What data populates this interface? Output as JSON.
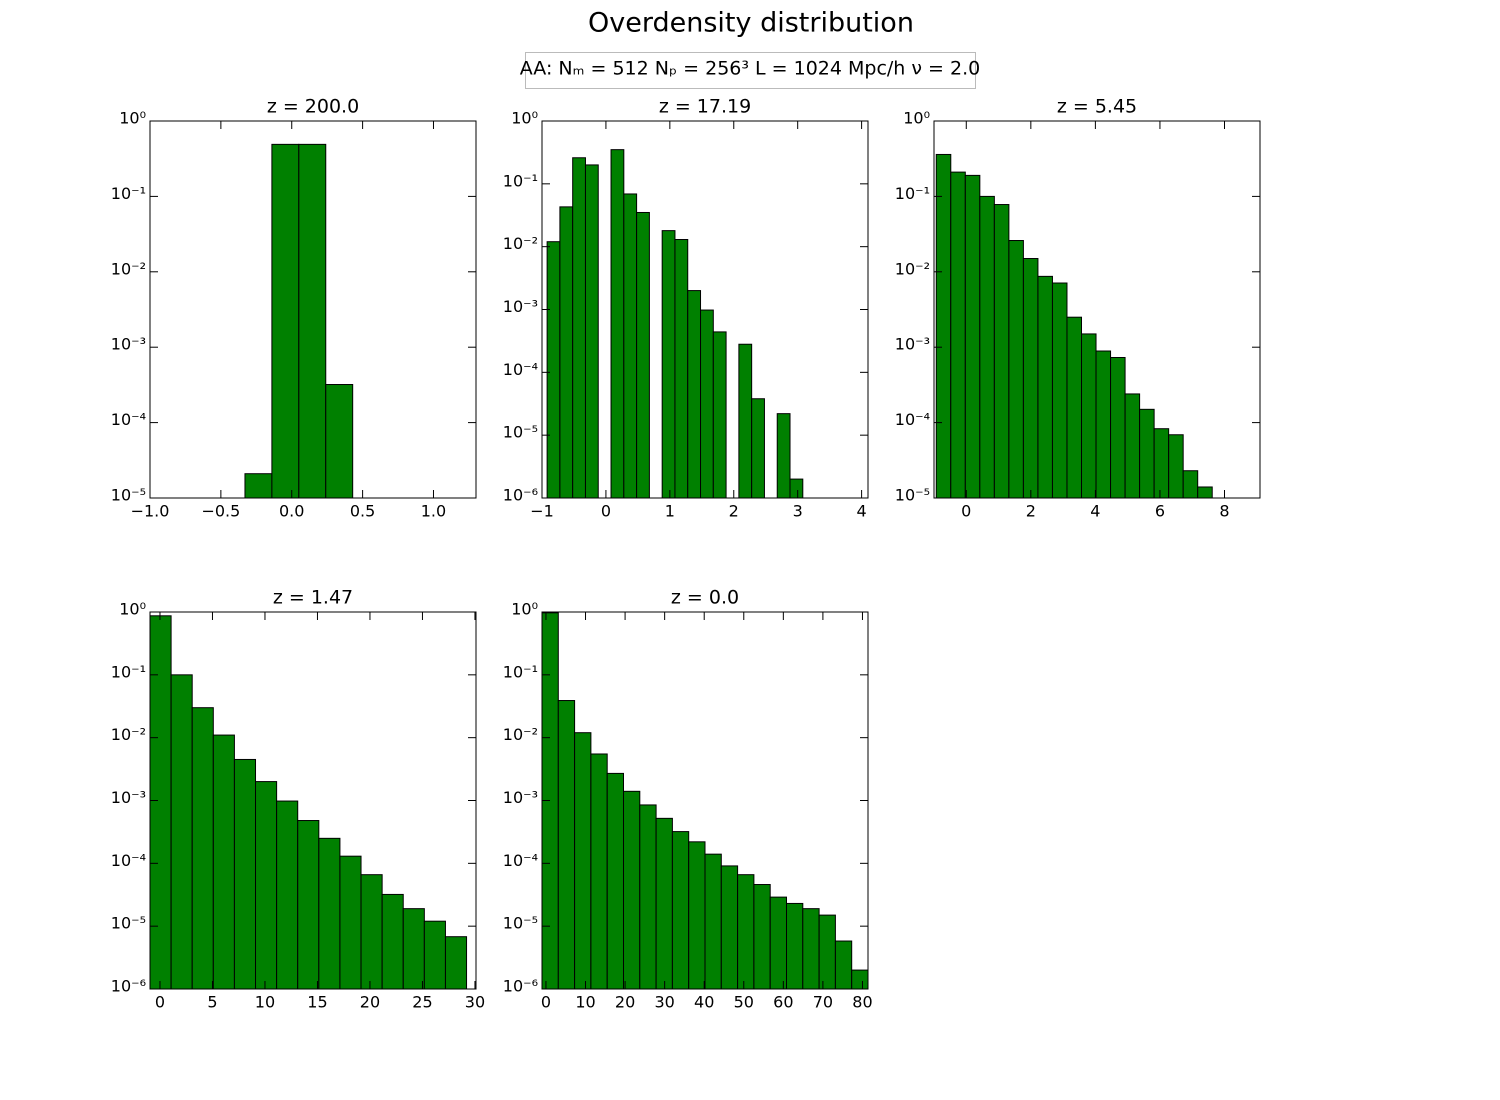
{
  "title": "Overdensity distribution",
  "annotation": "AA:  Nₘ = 512  Nₚ = 256³   L = 1024 Mpc/h  ν = 2.0",
  "chart_data": [
    {
      "type": "histogram",
      "title": "z = 200.0",
      "color": "#008000",
      "yscale": "log",
      "bins": [
        -0.33,
        -0.14,
        0.05,
        0.24,
        0.43
      ],
      "counts": [
        2.1e-05,
        0.49,
        0.49,
        0.00032
      ],
      "xlim": [
        -1,
        1.3
      ],
      "xticks": [
        {
          "value": -1,
          "label": "−1.0"
        },
        {
          "value": -0.5,
          "label": "−0.5"
        },
        {
          "value": 0,
          "label": "0.0"
        },
        0.5,
        {
          "value": 1,
          "label": "1.0"
        }
      ],
      "ylim": [
        1e-05,
        1
      ],
      "yticks": [
        {
          "value": 1e-05,
          "label": "10⁻⁵"
        },
        {
          "value": 0.0001,
          "label": "10⁻⁴"
        },
        {
          "value": 0.001,
          "label": "10⁻³"
        },
        {
          "value": 0.01,
          "label": "10⁻²"
        },
        {
          "value": 0.1,
          "label": "10⁻¹"
        },
        {
          "value": 1,
          "label": "10⁰"
        }
      ]
    },
    {
      "type": "histogram",
      "title": "z = 17.19",
      "color": "#008000",
      "yscale": "log",
      "bins": [
        -0.92,
        -0.72,
        -0.52,
        -0.32,
        -0.12,
        0.08,
        0.28,
        0.48,
        0.68,
        0.88,
        1.08,
        1.28,
        1.48,
        1.68,
        1.88,
        2.08,
        2.28,
        2.48,
        2.68,
        2.88,
        3.08
      ],
      "counts": [
        0.012,
        0.043,
        0.26,
        0.2,
        0,
        0.35,
        0.069,
        0.035,
        0,
        0.018,
        0.013,
        0.002,
        0.00098,
        0.00044,
        0,
        0.00028,
        3.8e-05,
        0,
        2.2e-05,
        2e-06
      ],
      "xlim": [
        -1,
        4.1
      ],
      "xticks": [
        {
          "value": -1,
          "label": "−1"
        },
        0,
        1,
        2,
        3,
        4
      ],
      "ylim": [
        1e-06,
        1
      ],
      "yticks": [
        {
          "value": 1e-06,
          "label": "10⁻⁶"
        },
        {
          "value": 1e-05,
          "label": "10⁻⁵"
        },
        {
          "value": 0.0001,
          "label": "10⁻⁴"
        },
        {
          "value": 0.001,
          "label": "10⁻³"
        },
        {
          "value": 0.01,
          "label": "10⁻²"
        },
        {
          "value": 0.1,
          "label": "10⁻¹"
        },
        {
          "value": 1,
          "label": "10⁰"
        }
      ]
    },
    {
      "type": "histogram",
      "title": "z = 5.45",
      "color": "#008000",
      "yscale": "log",
      "bins": [
        -0.93,
        -0.48,
        -0.03,
        0.42,
        0.87,
        1.32,
        1.77,
        2.22,
        2.67,
        3.12,
        3.57,
        4.02,
        4.47,
        4.92,
        5.37,
        5.82,
        6.27,
        6.72,
        7.17,
        7.62
      ],
      "counts": [
        0.36,
        0.21,
        0.19,
        0.1,
        0.078,
        0.026,
        0.015,
        0.0087,
        0.0071,
        0.0025,
        0.0015,
        0.00089,
        0.00073,
        0.00024,
        0.00015,
        8.3e-05,
        6.9e-05,
        2.3e-05,
        1.4e-05
      ],
      "xlim": [
        -1,
        9.1
      ],
      "xticks": [
        0,
        2,
        4,
        6,
        8
      ],
      "ylim": [
        1e-05,
        1
      ],
      "yticks": [
        {
          "value": 1e-05,
          "label": "10⁻⁵"
        },
        {
          "value": 0.0001,
          "label": "10⁻⁴"
        },
        {
          "value": 0.001,
          "label": "10⁻³"
        },
        {
          "value": 0.01,
          "label": "10⁻²"
        },
        {
          "value": 0.1,
          "label": "10⁻¹"
        },
        {
          "value": 1,
          "label": "10⁰"
        }
      ]
    },
    {
      "type": "histogram",
      "title": "z = 1.47",
      "color": "#008000",
      "yscale": "log",
      "bins": [
        -0.95,
        1.06,
        3.07,
        5.08,
        7.09,
        9.1,
        11.11,
        13.12,
        15.13,
        17.14,
        19.15,
        21.16,
        23.17,
        25.18,
        27.19,
        29.2
      ],
      "counts": [
        0.87,
        0.1,
        0.03,
        0.011,
        0.0045,
        0.002,
        0.00098,
        0.00048,
        0.00025,
        0.00013,
        6.6e-05,
        3.2e-05,
        1.9e-05,
        1.2e-05,
        6.8e-06
      ],
      "xlim": [
        -0.95,
        30.1
      ],
      "xticks": [
        0,
        5,
        10,
        15,
        20,
        25,
        30
      ],
      "ylim": [
        1e-06,
        1
      ],
      "yticks": [
        {
          "value": 1e-06,
          "label": "10⁻⁶"
        },
        {
          "value": 1e-05,
          "label": "10⁻⁵"
        },
        {
          "value": 0.0001,
          "label": "10⁻⁴"
        },
        {
          "value": 0.001,
          "label": "10⁻³"
        },
        {
          "value": 0.01,
          "label": "10⁻²"
        },
        {
          "value": 0.1,
          "label": "10⁻¹"
        },
        {
          "value": 1,
          "label": "10⁰"
        }
      ]
    },
    {
      "type": "histogram",
      "title": "z = 0.0",
      "color": "#008000",
      "yscale": "log",
      "bins": [
        -1,
        3.12,
        7.24,
        11.36,
        15.48,
        19.6,
        23.72,
        27.84,
        31.96,
        36.08,
        40.2,
        44.32,
        48.44,
        52.56,
        56.68,
        60.8,
        64.92,
        69.04,
        73.16,
        77.28,
        81.4
      ],
      "counts": [
        0.97,
        0.039,
        0.012,
        0.0055,
        0.0027,
        0.0014,
        0.00085,
        0.00052,
        0.00032,
        0.00022,
        0.00014,
        9.1e-05,
        6.6e-05,
        4.6e-05,
        2.9e-05,
        2.3e-05,
        1.9e-05,
        1.5e-05,
        5.8e-06,
        2e-06
      ],
      "xlim": [
        -1,
        81.4
      ],
      "xticks": [
        0,
        10,
        20,
        30,
        40,
        50,
        60,
        70,
        80
      ],
      "ylim": [
        1e-06,
        1
      ],
      "yticks": [
        {
          "value": 1e-06,
          "label": "10⁻⁶"
        },
        {
          "value": 1e-05,
          "label": "10⁻⁵"
        },
        {
          "value": 0.0001,
          "label": "10⁻⁴"
        },
        {
          "value": 0.001,
          "label": "10⁻³"
        },
        {
          "value": 0.01,
          "label": "10⁻²"
        },
        {
          "value": 0.1,
          "label": "10⁻¹"
        },
        {
          "value": 1,
          "label": "10⁰"
        }
      ]
    }
  ]
}
